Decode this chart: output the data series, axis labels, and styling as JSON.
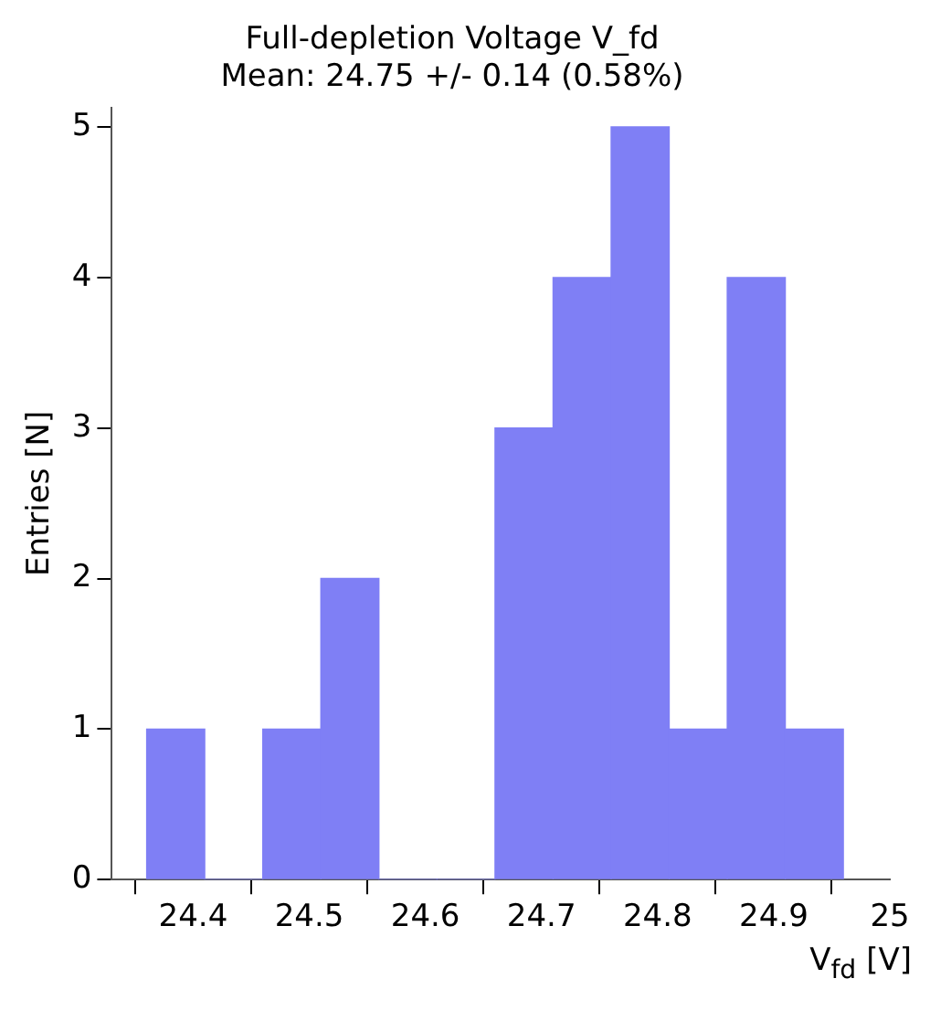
{
  "chart_data": {
    "type": "histogram",
    "title": "Full-depletion Voltage V_fd",
    "subtitle": "Mean: 24.75 +/- 0.14 (0.58%)",
    "xlabel": "V$_{fd}$ [V]",
    "ylabel": "Entries [N]",
    "bins": [
      24.36,
      24.41,
      24.46,
      24.51,
      24.56,
      24.61,
      24.66,
      24.71,
      24.76,
      24.81,
      24.86,
      24.91,
      24.96
    ],
    "values": [
      1,
      0,
      1,
      2,
      0,
      0,
      3,
      4,
      5,
      1,
      4,
      1
    ],
    "color": "#7f7ff5",
    "xlim": [
      24.33,
      25.0
    ],
    "xticks": [
      24.4,
      24.5,
      24.6,
      24.7,
      24.8,
      24.9,
      25
    ],
    "ylim": [
      0,
      5.13
    ],
    "yticks": [
      0,
      1,
      2,
      3,
      4,
      5
    ],
    "grid": false,
    "legend": false
  }
}
